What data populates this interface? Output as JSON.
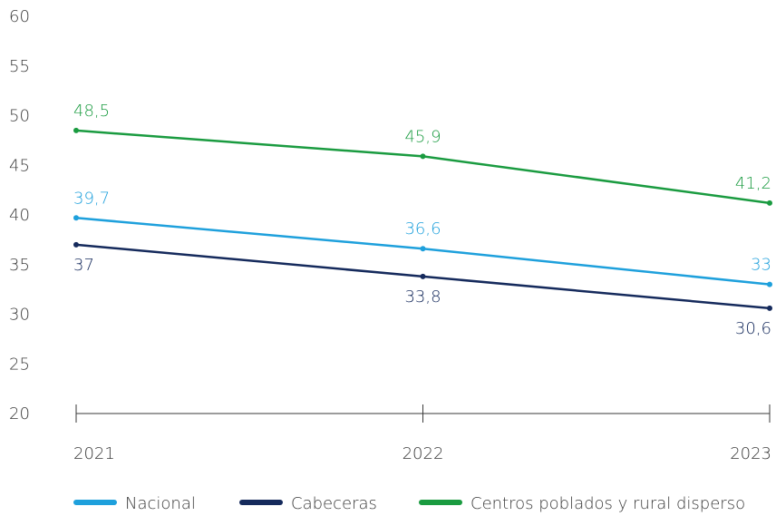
{
  "chart_data": {
    "type": "line",
    "title": "",
    "xlabel": "",
    "ylabel": "",
    "ylim": [
      20,
      60
    ],
    "yticks": [
      20,
      25,
      30,
      35,
      40,
      45,
      50,
      55,
      60
    ],
    "categories": [
      "2021",
      "2022",
      "2023"
    ],
    "legend_position": "bottom",
    "grid": false,
    "series": [
      {
        "name": "Nacional",
        "values": [
          39.7,
          36.6,
          33
        ],
        "labels": [
          "39,7",
          "36,6",
          "33"
        ],
        "color": "#1ea0dc",
        "label_position": "above"
      },
      {
        "name": "Cabeceras",
        "values": [
          37,
          33.8,
          30.6
        ],
        "labels": [
          "37",
          "33,8",
          "30,6"
        ],
        "color": "#152a5c",
        "label_position": "below"
      },
      {
        "name": "Centros poblados y rural disperso",
        "values": [
          48.5,
          45.9,
          41.2
        ],
        "labels": [
          "48,5",
          "45,9",
          "41,2"
        ],
        "color": "#1a9b40",
        "label_position": "above"
      }
    ]
  }
}
